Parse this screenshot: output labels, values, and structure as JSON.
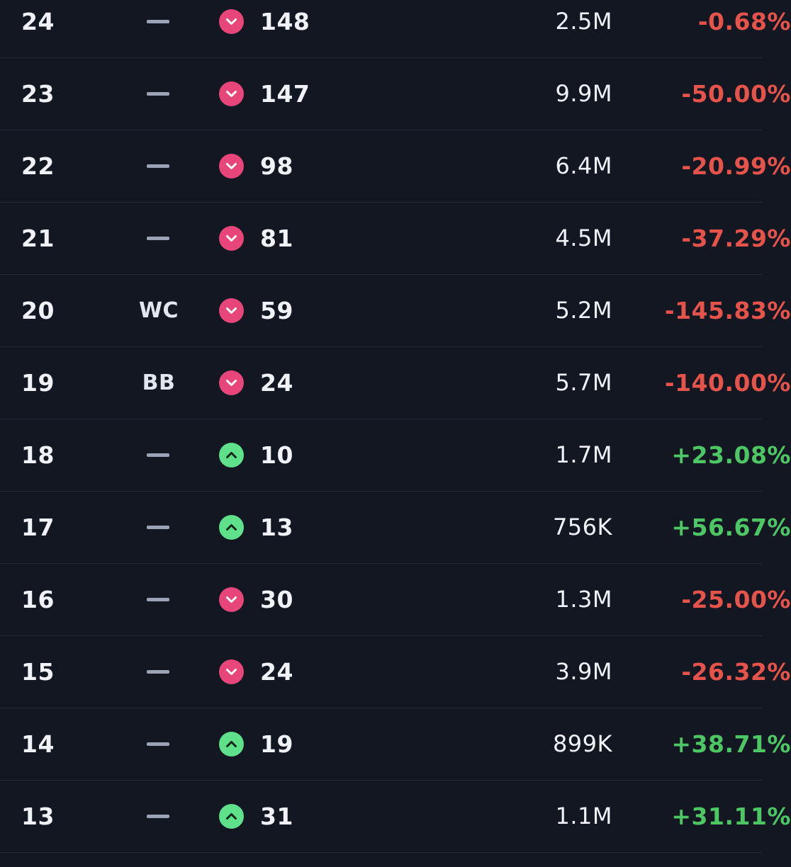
{
  "rows": [
    {
      "week": "24",
      "tag": "",
      "direction": "down",
      "rank": "148",
      "volume": "2.5M",
      "change": "-0.68%"
    },
    {
      "week": "23",
      "tag": "",
      "direction": "down",
      "rank": "147",
      "volume": "9.9M",
      "change": "-50.00%"
    },
    {
      "week": "22",
      "tag": "",
      "direction": "down",
      "rank": "98",
      "volume": "6.4M",
      "change": "-20.99%"
    },
    {
      "week": "21",
      "tag": "",
      "direction": "down",
      "rank": "81",
      "volume": "4.5M",
      "change": "-37.29%"
    },
    {
      "week": "20",
      "tag": "WC",
      "direction": "down",
      "rank": "59",
      "volume": "5.2M",
      "change": "-145.83%"
    },
    {
      "week": "19",
      "tag": "BB",
      "direction": "down",
      "rank": "24",
      "volume": "5.7M",
      "change": "-140.00%"
    },
    {
      "week": "18",
      "tag": "",
      "direction": "up",
      "rank": "10",
      "volume": "1.7M",
      "change": "+23.08%"
    },
    {
      "week": "17",
      "tag": "",
      "direction": "up",
      "rank": "13",
      "volume": "756K",
      "change": "+56.67%"
    },
    {
      "week": "16",
      "tag": "",
      "direction": "down",
      "rank": "30",
      "volume": "1.3M",
      "change": "-25.00%"
    },
    {
      "week": "15",
      "tag": "",
      "direction": "down",
      "rank": "24",
      "volume": "3.9M",
      "change": "-26.32%"
    },
    {
      "week": "14",
      "tag": "",
      "direction": "up",
      "rank": "19",
      "volume": "899K",
      "change": "+38.71%"
    },
    {
      "week": "13",
      "tag": "",
      "direction": "up",
      "rank": "31",
      "volume": "1.1M",
      "change": "+31.11%"
    }
  ],
  "colors": {
    "background": "#131722",
    "negative": "#e5534b",
    "positive": "#4cc764",
    "arrow_down": "#e8467a",
    "arrow_up": "#5fe08a"
  },
  "icons": {
    "down": "chevron-down-icon",
    "up": "chevron-up-icon",
    "empty_tag": "dash-icon"
  }
}
